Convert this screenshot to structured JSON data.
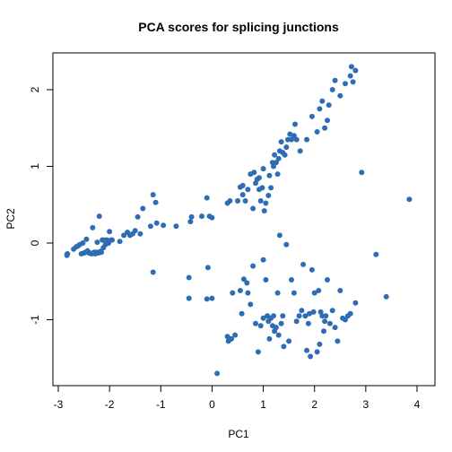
{
  "chart_data": {
    "type": "scatter",
    "title": "PCA scores for splicing junctions",
    "xlabel": "PC1",
    "ylabel": "PC2",
    "xlim": [
      -3.0,
      4.0
    ],
    "ylim": [
      -1.9,
      2.5
    ],
    "xticks": [
      -3,
      -2,
      -1,
      0,
      1,
      2,
      3,
      4
    ],
    "yticks": [
      -1,
      0,
      1,
      2
    ],
    "grid": false,
    "point_color": "#2E6DB4",
    "series": [
      {
        "points": [
          [
            -2.83,
            -0.16
          ],
          [
            -2.83,
            -0.15
          ],
          [
            -2.82,
            -0.14
          ],
          [
            -2.7,
            -0.08
          ],
          [
            -2.65,
            -0.05
          ],
          [
            -2.62,
            -0.04
          ],
          [
            -2.58,
            -0.02
          ],
          [
            -2.55,
            -0.14
          ],
          [
            -2.52,
            0.0
          ],
          [
            -2.5,
            -0.13
          ],
          [
            -2.47,
            -0.12
          ],
          [
            -2.45,
            0.05
          ],
          [
            -2.43,
            -0.1
          ],
          [
            -2.4,
            -0.13
          ],
          [
            -2.38,
            -0.13
          ],
          [
            -2.35,
            -0.14
          ],
          [
            -2.33,
            0.2
          ],
          [
            -2.3,
            -0.12
          ],
          [
            -2.28,
            -0.14
          ],
          [
            -2.26,
            -0.12
          ],
          [
            -2.24,
            0.01
          ],
          [
            -2.22,
            -0.13
          ],
          [
            -2.2,
            -0.12
          ],
          [
            -2.18,
            -0.11
          ],
          [
            -2.16,
            -0.12
          ],
          [
            -2.14,
            0.04
          ],
          [
            -2.12,
            -0.06
          ],
          [
            -2.1,
            0.04
          ],
          [
            -2.08,
            -0.02
          ],
          [
            -2.05,
            0.04
          ],
          [
            -2.02,
            0.0
          ],
          [
            -2.0,
            0.15
          ],
          [
            -1.97,
            0.04
          ],
          [
            -1.95,
            0.04
          ],
          [
            -2.2,
            0.35
          ],
          [
            -1.8,
            0.02
          ],
          [
            -1.72,
            0.1
          ],
          [
            -1.65,
            0.14
          ],
          [
            -1.6,
            0.1
          ],
          [
            -1.55,
            0.12
          ],
          [
            -1.5,
            0.16
          ],
          [
            -1.45,
            0.34
          ],
          [
            -1.4,
            0.12
          ],
          [
            -1.35,
            0.45
          ],
          [
            -1.2,
            0.22
          ],
          [
            -1.15,
            0.63
          ],
          [
            -1.1,
            0.53
          ],
          [
            -1.08,
            0.26
          ],
          [
            -0.95,
            0.23
          ],
          [
            -0.7,
            0.22
          ],
          [
            -0.42,
            0.28
          ],
          [
            -0.4,
            0.34
          ],
          [
            -0.2,
            0.35
          ],
          [
            -0.1,
            0.59
          ],
          [
            -0.05,
            0.35
          ],
          [
            0.0,
            0.33
          ],
          [
            0.3,
            0.52
          ],
          [
            0.35,
            0.55
          ],
          [
            0.5,
            0.55
          ],
          [
            0.55,
            0.73
          ],
          [
            0.6,
            0.75
          ],
          [
            0.6,
            0.63
          ],
          [
            0.65,
            0.55
          ],
          [
            0.7,
            0.7
          ],
          [
            0.75,
            0.9
          ],
          [
            0.8,
            0.45
          ],
          [
            0.82,
            0.92
          ],
          [
            0.85,
            0.78
          ],
          [
            0.88,
            0.83
          ],
          [
            0.92,
            0.85
          ],
          [
            0.92,
            0.7
          ],
          [
            0.95,
            0.55
          ],
          [
            0.98,
            0.72
          ],
          [
            1.0,
            0.97
          ],
          [
            1.02,
            0.42
          ],
          [
            1.05,
            0.52
          ],
          [
            1.1,
            0.62
          ],
          [
            1.12,
            0.88
          ],
          [
            1.15,
            0.72
          ],
          [
            1.18,
            1.05
          ],
          [
            1.2,
            1.0
          ],
          [
            1.22,
            1.15
          ],
          [
            1.25,
            1.05
          ],
          [
            1.28,
            0.9
          ],
          [
            1.3,
            1.1
          ],
          [
            1.32,
            1.2
          ],
          [
            1.35,
            1.32
          ],
          [
            1.38,
            1.18
          ],
          [
            1.42,
            1.15
          ],
          [
            1.45,
            1.25
          ],
          [
            1.48,
            1.35
          ],
          [
            1.52,
            1.42
          ],
          [
            1.55,
            1.35
          ],
          [
            1.6,
            1.4
          ],
          [
            1.62,
            1.55
          ],
          [
            1.65,
            1.35
          ],
          [
            1.72,
            1.2
          ],
          [
            1.85,
            1.35
          ],
          [
            1.95,
            1.65
          ],
          [
            2.05,
            1.45
          ],
          [
            2.1,
            1.75
          ],
          [
            2.15,
            1.85
          ],
          [
            2.2,
            1.5
          ],
          [
            2.25,
            1.6
          ],
          [
            2.28,
            1.8
          ],
          [
            2.35,
            2.0
          ],
          [
            2.4,
            2.12
          ],
          [
            2.5,
            1.92
          ],
          [
            2.6,
            2.08
          ],
          [
            2.7,
            2.18
          ],
          [
            2.72,
            2.3
          ],
          [
            2.75,
            2.1
          ],
          [
            2.8,
            2.25
          ],
          [
            2.92,
            0.92
          ],
          [
            3.85,
            0.57
          ],
          [
            -1.15,
            -0.38
          ],
          [
            -0.45,
            -0.45
          ],
          [
            -0.45,
            -0.72
          ],
          [
            -0.08,
            -0.32
          ],
          [
            -0.1,
            -0.73
          ],
          [
            0.0,
            -0.72
          ],
          [
            0.3,
            -1.22
          ],
          [
            0.32,
            -1.28
          ],
          [
            0.35,
            -1.25
          ],
          [
            0.38,
            -1.25
          ],
          [
            0.4,
            -0.65
          ],
          [
            0.45,
            -1.2
          ],
          [
            0.55,
            -0.62
          ],
          [
            0.58,
            -0.92
          ],
          [
            0.62,
            -0.47
          ],
          [
            0.68,
            -0.52
          ],
          [
            0.7,
            -0.65
          ],
          [
            0.75,
            -0.8
          ],
          [
            0.8,
            -0.3
          ],
          [
            0.85,
            -1.05
          ],
          [
            0.95,
            -1.08
          ],
          [
            1.0,
            -0.22
          ],
          [
            1.05,
            -0.48
          ],
          [
            1.08,
            -0.95
          ],
          [
            1.1,
            -1.02
          ],
          [
            1.12,
            -1.25
          ],
          [
            1.15,
            -0.98
          ],
          [
            1.18,
            -1.08
          ],
          [
            1.2,
            -0.95
          ],
          [
            1.22,
            -1.15
          ],
          [
            1.25,
            -1.1
          ],
          [
            1.28,
            -0.65
          ],
          [
            1.3,
            -1.2
          ],
          [
            1.32,
            0.1
          ],
          [
            1.35,
            -1.05
          ],
          [
            1.38,
            -0.95
          ],
          [
            1.4,
            -1.35
          ],
          [
            1.45,
            -0.02
          ],
          [
            1.5,
            -1.28
          ],
          [
            1.55,
            -0.48
          ],
          [
            1.6,
            -0.65
          ],
          [
            1.65,
            -1.02
          ],
          [
            1.7,
            -0.95
          ],
          [
            1.75,
            -0.88
          ],
          [
            1.78,
            -0.28
          ],
          [
            1.82,
            -0.95
          ],
          [
            1.85,
            -1.4
          ],
          [
            1.88,
            -1.05
          ],
          [
            1.9,
            -0.92
          ],
          [
            1.92,
            -1.48
          ],
          [
            1.95,
            -0.35
          ],
          [
            1.98,
            -0.9
          ],
          [
            2.0,
            -0.65
          ],
          [
            2.05,
            -1.42
          ],
          [
            2.08,
            -0.62
          ],
          [
            2.1,
            -1.32
          ],
          [
            2.12,
            -0.9
          ],
          [
            2.15,
            -0.95
          ],
          [
            2.18,
            -1.15
          ],
          [
            2.2,
            -1.02
          ],
          [
            2.22,
            -0.95
          ],
          [
            2.25,
            -0.48
          ],
          [
            2.3,
            -1.05
          ],
          [
            2.35,
            -0.88
          ],
          [
            2.4,
            -1.1
          ],
          [
            2.45,
            -1.28
          ],
          [
            2.5,
            -0.62
          ],
          [
            2.55,
            -0.98
          ],
          [
            2.6,
            -1.0
          ],
          [
            2.65,
            -0.95
          ],
          [
            2.7,
            -0.92
          ],
          [
            2.8,
            -0.78
          ],
          [
            3.2,
            -0.15
          ],
          [
            3.4,
            -0.7
          ],
          [
            0.1,
            -1.7
          ],
          [
            0.9,
            -1.42
          ],
          [
            1.0,
            -0.98
          ]
        ]
      }
    ]
  }
}
